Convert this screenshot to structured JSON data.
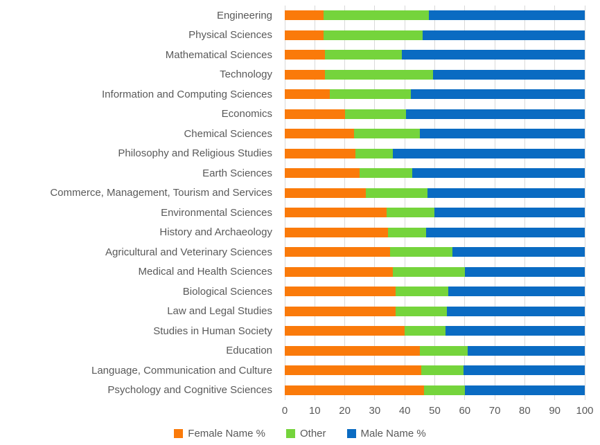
{
  "chart_data": {
    "type": "bar",
    "orientation": "horizontal-stacked",
    "title": "",
    "xlabel": "",
    "ylabel": "",
    "xlim": [
      0,
      100
    ],
    "x_ticks": [
      0,
      10,
      20,
      30,
      40,
      50,
      60,
      70,
      80,
      90,
      100
    ],
    "grid": true,
    "legend_position": "bottom",
    "categories": [
      "Engineering",
      "Physical Sciences",
      "Mathematical Sciences",
      "Technology",
      "Information and Computing Sciences",
      "Economics",
      "Chemical Sciences",
      "Philosophy and Religious Studies",
      "Earth Sciences",
      "Commerce, Management, Tourism and Services",
      "Environmental Sciences",
      "History and Archaeology",
      "Agricultural and Veterinary Sciences",
      "Medical and Health Sciences",
      "Biological Sciences",
      "Law and Legal Studies",
      "Studies in Human Society",
      "Education",
      "Language, Communication and Culture",
      "Psychology and Cognitive Sciences"
    ],
    "series": [
      {
        "name": "Female Name %",
        "color": "#FA7A0A",
        "values": [
          13,
          13,
          13.5,
          13.5,
          15,
          20,
          23,
          23.5,
          25,
          27,
          34,
          34.5,
          35,
          36,
          37,
          37,
          40,
          45,
          45.5,
          46.5
        ]
      },
      {
        "name": "Other",
        "color": "#75D43C",
        "values": [
          35,
          33,
          25.5,
          36,
          27,
          20.5,
          22,
          12.5,
          17.5,
          20.5,
          16,
          12.5,
          21,
          24,
          17.5,
          17,
          13.5,
          16,
          14,
          13.5
        ]
      },
      {
        "name": "Male Name %",
        "color": "#0A6BC2",
        "values": [
          52,
          54,
          61,
          50.5,
          58,
          59.5,
          55,
          64,
          57.5,
          52.5,
          50,
          53,
          44,
          40,
          45.5,
          46,
          46.5,
          39,
          40.5,
          40
        ]
      }
    ]
  },
  "styles": {
    "background": "#FFFFFF",
    "text_color": "#595959",
    "gridline_color": "#D9D9D9"
  }
}
